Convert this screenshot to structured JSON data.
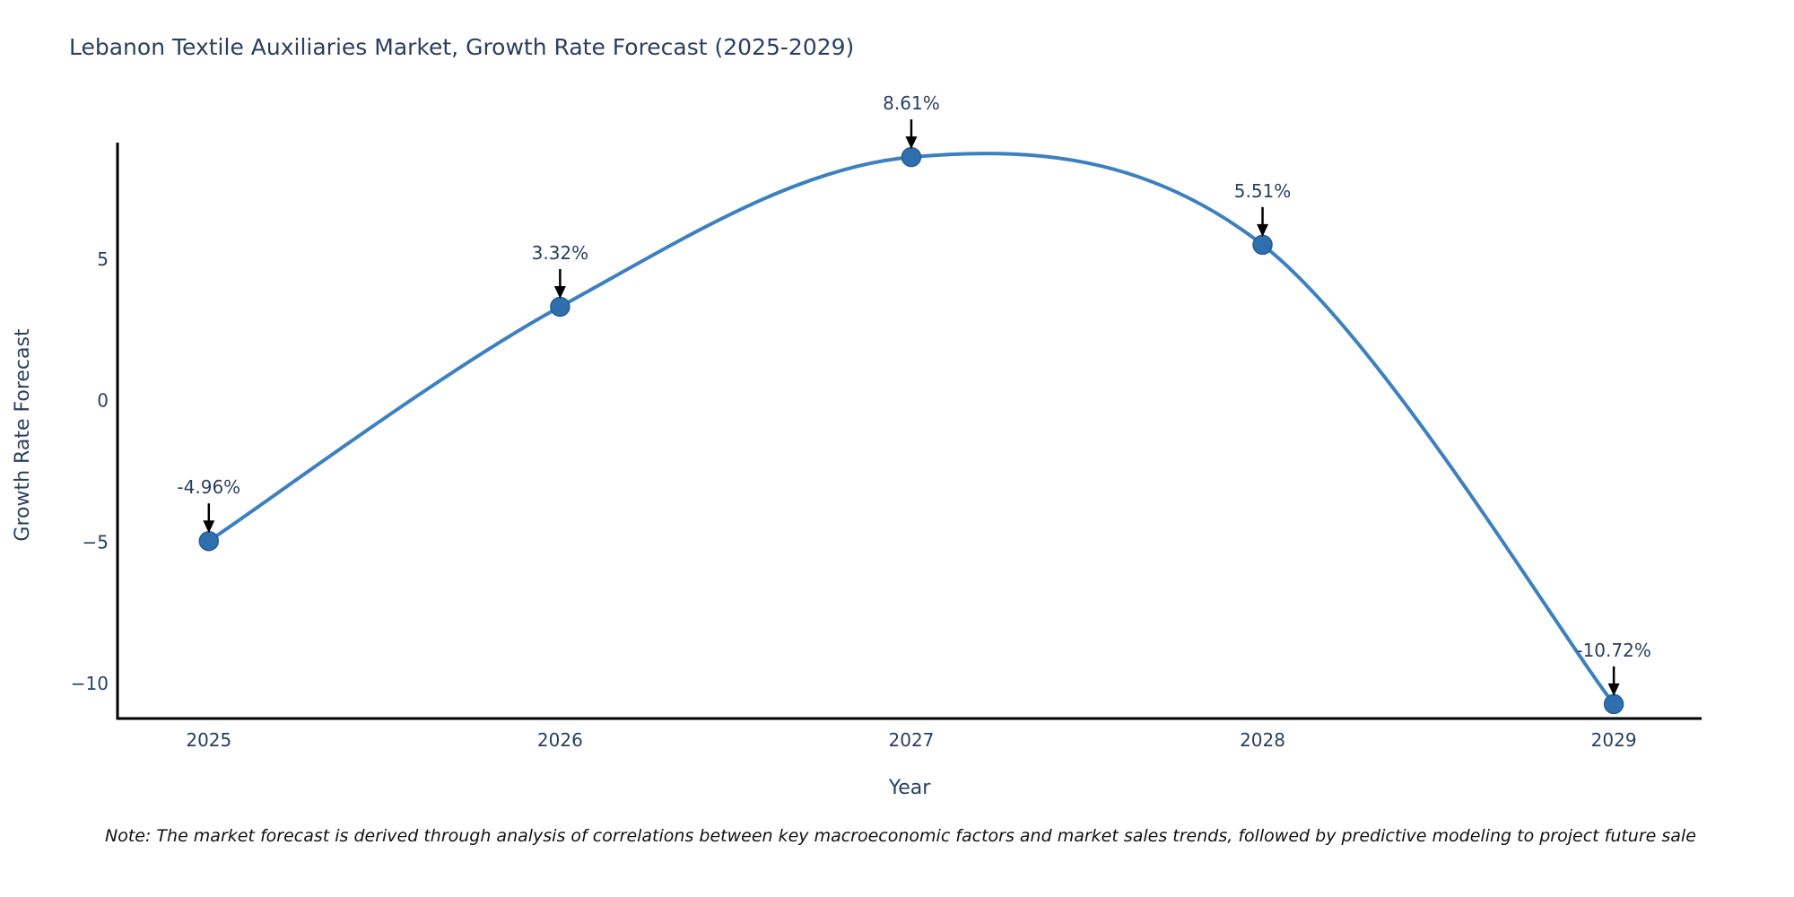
{
  "chart_data": {
    "type": "line",
    "line_shape": "spline",
    "title": "Lebanon Textile Auxiliaries Market, Growth Rate Forecast (2025-2029)",
    "xlabel": "Year",
    "ylabel": "Growth Rate Forecast",
    "x": [
      2025,
      2026,
      2027,
      2028,
      2029
    ],
    "xtick_labels": [
      "2025",
      "2026",
      "2027",
      "2028",
      "2029"
    ],
    "yticks": [
      5,
      0,
      -5,
      -10
    ],
    "ytick_labels": [
      "5",
      "0",
      "−5",
      "−10"
    ],
    "series": [
      {
        "name": "Growth Rate Forecast",
        "values": [
          -4.96,
          3.32,
          8.61,
          5.51,
          -10.72
        ]
      }
    ],
    "point_labels": [
      "-4.96%",
      "3.32%",
      "8.61%",
      "5.51%",
      "-10.72%"
    ],
    "xlim": [
      2024.74,
      2029.25
    ],
    "ylim": [
      -11.23,
      9.12
    ],
    "grid": false,
    "legend": "none",
    "note": "Note: The market forecast is derived through analysis of correlations between key macroeconomic factors and market sales trends, followed by predictive modeling to project future sale",
    "colors": {
      "line": "#3d80c0",
      "marker": "#2f6fae",
      "marker_edge": "#275d92",
      "axis": "#000000",
      "tick_text": "#2a3f5f",
      "title_text": "#2a3f5f",
      "annotation_text": "#2a3f5f",
      "annotation_arrow": "#000000",
      "note_text": "#111111"
    }
  }
}
